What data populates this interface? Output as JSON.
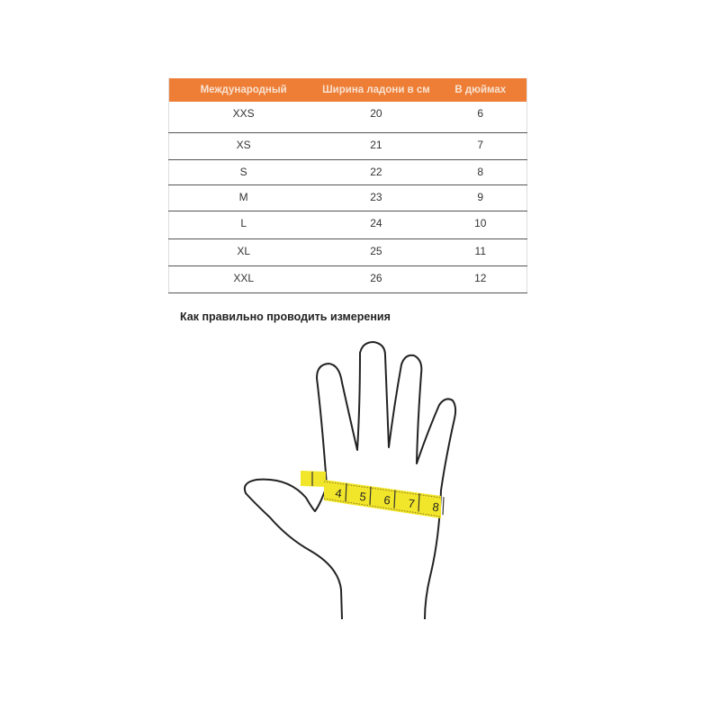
{
  "table": {
    "headers": [
      "Международный",
      "Ширина ладони в см",
      "В дюймах"
    ],
    "rows": [
      [
        "XXS",
        "20",
        "6"
      ],
      [
        "XS",
        "21",
        "7"
      ],
      [
        "S",
        "22",
        "8"
      ],
      [
        "M",
        "23",
        "9"
      ],
      [
        "L",
        "24",
        "10"
      ],
      [
        "XL",
        "25",
        "11"
      ],
      [
        "XXL",
        "26",
        "12"
      ]
    ],
    "header_color": "#ee7d35"
  },
  "caption": "Как правильно проводить измерения",
  "illustration": {
    "tape_color": "#f2e62a",
    "tape_marks": [
      "4",
      "5",
      "6",
      "7",
      "8"
    ]
  }
}
